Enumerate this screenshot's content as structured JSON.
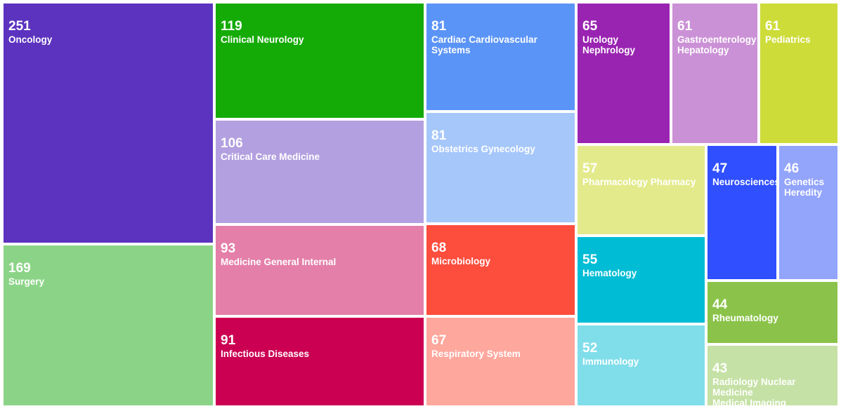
{
  "chart_data": {
    "type": "treemap",
    "items": [
      {
        "label": "Oncology",
        "value": 251,
        "color": "#5c33bf"
      },
      {
        "label": "Surgery",
        "value": 169,
        "color": "#8bd487"
      },
      {
        "label": "Clinical Neurology",
        "value": 119,
        "color": "#15ab07"
      },
      {
        "label": "Critical Care Medicine",
        "value": 106,
        "color": "#b3a0e0"
      },
      {
        "label": "Medicine General Internal",
        "value": 93,
        "color": "#e47fa9"
      },
      {
        "label": "Infectious Diseases",
        "value": 91,
        "color": "#cc0052"
      },
      {
        "label": "Cardiac Cardiovascular\nSystems",
        "value": 81,
        "color": "#5b94f7"
      },
      {
        "label": "Obstetrics Gynecology",
        "value": 81,
        "color": "#a6c7fa"
      },
      {
        "label": "Microbiology",
        "value": 68,
        "color": "#fd4d3d"
      },
      {
        "label": "Respiratory System",
        "value": 67,
        "color": "#fea79d"
      },
      {
        "label": "Urology\nNephrology",
        "value": 65,
        "color": "#9a24b2"
      },
      {
        "label": "Gastroenterology\nHepatology",
        "value": 61,
        "color": "#cb91d6"
      },
      {
        "label": "Pediatrics",
        "value": 61,
        "color": "#cddc39"
      },
      {
        "label": "Pharmacology Pharmacy",
        "value": 57,
        "color": "#e3ea8b"
      },
      {
        "label": "Hematology",
        "value": 55,
        "color": "#00bcd4"
      },
      {
        "label": "Immunology",
        "value": 52,
        "color": "#80deea"
      },
      {
        "label": "Neurosciences",
        "value": 47,
        "color": "#304ffe"
      },
      {
        "label": "Genetics\nHeredity",
        "value": 46,
        "color": "#93a4fb"
      },
      {
        "label": "Rheumatology",
        "value": 44,
        "color": "#8bc34a"
      },
      {
        "label": "Radiology Nuclear Medicine\nMedical Imaging",
        "value": 43,
        "color": "#c5e1a5"
      }
    ]
  }
}
